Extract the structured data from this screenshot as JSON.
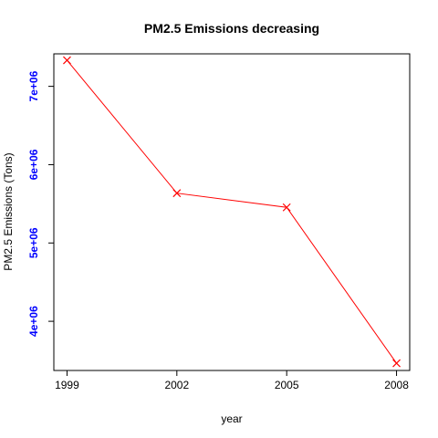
{
  "chart_data": {
    "type": "line",
    "title": "PM2.5 Emissions decreasing",
    "xlabel": "year",
    "ylabel": "PM2.5 Emissions (Tons)",
    "x": [
      1999,
      2002,
      2005,
      2008
    ],
    "x_tick_labels": [
      "1999",
      "2002",
      "2005",
      "2008"
    ],
    "y_ticks": [
      4000000,
      5000000,
      6000000,
      7000000
    ],
    "y_tick_labels": [
      "4e+06",
      "5e+06",
      "6e+06",
      "7e+06"
    ],
    "xlim": [
      1998.64,
      2008.36
    ],
    "ylim": [
      3372000,
      7415000
    ],
    "grid": false,
    "series": [
      {
        "values": [
          7332967,
          5635780,
          5454703,
          3464206
        ],
        "color": "#ff0000",
        "marker": "x"
      }
    ],
    "colors": {
      "ytick_text": "#0000ff",
      "axis": "#000000"
    }
  }
}
